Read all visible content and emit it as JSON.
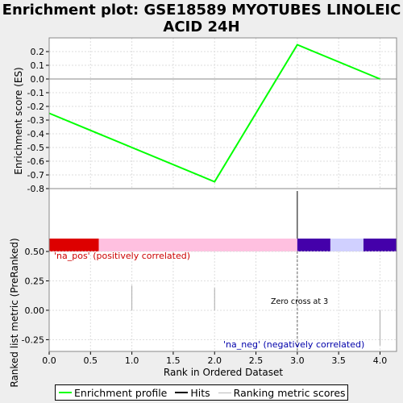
{
  "title": "Enrichment plot: GSE18589 MYOTUBES LINOLEIC ACID 24H",
  "chart_data": {
    "type": "line",
    "title": "Enrichment plot: GSE18589 MYOTUBES LINOLEIC ACID 24H",
    "top_panel": {
      "ylabel": "Enrichment score (ES)",
      "ylim": [
        -0.8,
        0.3
      ],
      "yticks": [
        "0.2",
        "0.1",
        "0.0",
        "-0.1",
        "-0.2",
        "-0.3",
        "-0.4",
        "-0.5",
        "-0.6",
        "-0.7",
        "-0.8"
      ],
      "ytick_values": [
        0.2,
        0.1,
        0.0,
        -0.1,
        -0.2,
        -0.3,
        -0.4,
        -0.5,
        -0.6,
        -0.7,
        -0.8
      ],
      "grid": true,
      "series": [
        {
          "name": "Enrichment profile",
          "color": "#00ff00",
          "x": [
            0,
            2,
            3,
            4
          ],
          "y": [
            -0.25,
            -0.75,
            0.25,
            0.0
          ]
        }
      ]
    },
    "hits": {
      "x": [
        3
      ],
      "color": "#000000"
    },
    "color_bar": [
      {
        "from": 0.0,
        "to": 0.6,
        "color": "#dd0000"
      },
      {
        "from": 0.6,
        "to": 3.0,
        "color": "#ffc0e0"
      },
      {
        "from": 3.0,
        "to": 3.4,
        "color": "#4400aa"
      },
      {
        "from": 3.4,
        "to": 3.8,
        "color": "#d0d0ff"
      },
      {
        "from": 3.8,
        "to": 4.2,
        "color": "#4400aa"
      }
    ],
    "bottom_panel": {
      "ylabel": "Ranked list metric (PreRanked)",
      "ylim": [
        -0.35,
        0.5
      ],
      "yticks": [
        "0.50",
        "0.25",
        "0.00",
        "-0.25"
      ],
      "ytick_values": [
        0.5,
        0.25,
        0.0,
        -0.25
      ],
      "grid": true,
      "metric_scores": {
        "x": [
          1,
          2,
          4
        ],
        "y": [
          0.21,
          0.19,
          -0.3
        ],
        "color": "#aaaaaa"
      },
      "zero_cross_x": 3,
      "annotations": {
        "pos_label": "'na_pos' (positively correlated)",
        "neg_label": "'na_neg' (negatively correlated)",
        "zero_cross": "Zero cross at 3"
      },
      "pos_color": "#cc0000",
      "neg_color": "#0000aa"
    },
    "xlabel": "Rank in Ordered Dataset",
    "xlim": [
      0,
      4.2
    ],
    "xticks": [
      "0.0",
      "0.5",
      "1.0",
      "1.5",
      "2.0",
      "2.5",
      "3.0",
      "3.5",
      "4.0"
    ],
    "xtick_values": [
      0,
      0.5,
      1.0,
      1.5,
      2.0,
      2.5,
      3.0,
      3.5,
      4.0
    ]
  },
  "legend": {
    "items": [
      {
        "label": "Enrichment profile",
        "color": "#00ff00"
      },
      {
        "label": "Hits",
        "color": "#000000"
      },
      {
        "label": "Ranking metric scores",
        "color": "#bbbbbb"
      }
    ]
  }
}
